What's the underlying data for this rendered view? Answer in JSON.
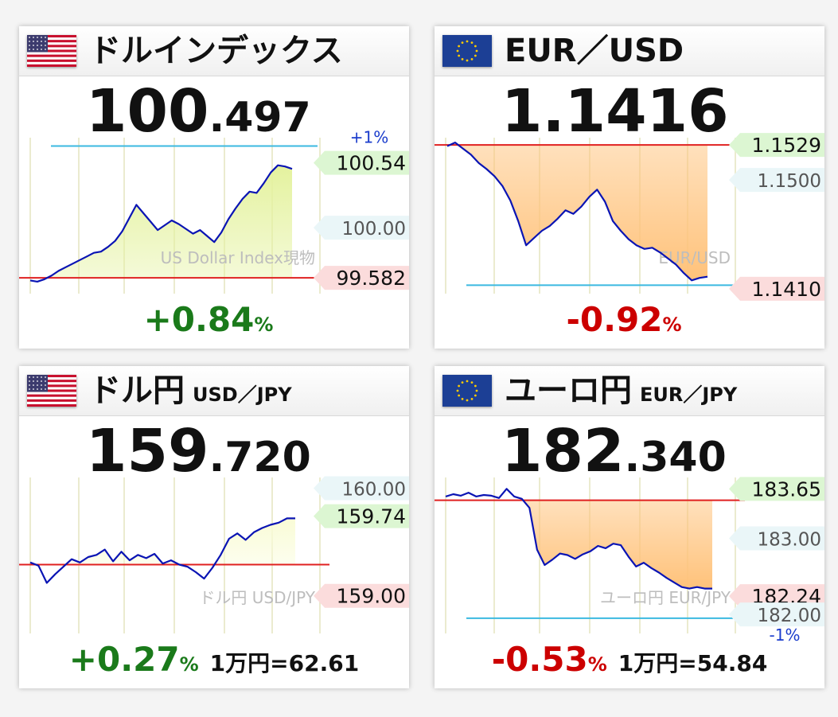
{
  "chart_data": [
    {
      "type": "line",
      "title": "ドルインデックス",
      "subtitle": "",
      "flag": "us-flag",
      "price_int": "100",
      "price_dec": ".497",
      "watermark": "US Dollar Index現物",
      "change": "+0.84",
      "change_unit": "%",
      "change_color": "#1a7a1a",
      "extra_text": "",
      "ylim": [
        99.45,
        100.75
      ],
      "ref_lines": [
        {
          "value": 100.68,
          "color": "#3bb9e0",
          "label": "+1%",
          "label_color": "#1a3ccc"
        },
        {
          "value": 99.582,
          "color": "#e02020",
          "label": "",
          "label_color": ""
        }
      ],
      "tick_labels": [
        {
          "value": 100.54,
          "text": "100.54",
          "kind": "high"
        },
        {
          "value": 100.0,
          "text": "100.00",
          "kind": "grid"
        },
        {
          "value": 99.582,
          "text": "99.582",
          "kind": "low"
        }
      ],
      "fill_color": "#e4f29e",
      "series": [
        {
          "values": [
            99.56,
            99.55,
            99.57,
            99.6,
            99.64,
            99.67,
            99.7,
            99.73,
            99.76,
            99.79,
            99.8,
            99.84,
            99.89,
            99.97,
            100.08,
            100.19,
            100.12,
            100.05,
            99.98,
            100.02,
            100.06,
            100.03,
            99.99,
            99.95,
            99.98,
            99.93,
            99.88,
            99.96,
            100.07,
            100.16,
            100.24,
            100.3,
            100.29,
            100.37,
            100.46,
            100.52,
            100.51,
            100.49
          ]
        }
      ]
    },
    {
      "type": "line",
      "title": "EUR／USD",
      "subtitle": "",
      "flag": "eu-flag",
      "price_int": "1.1416",
      "price_dec": "",
      "watermark": "EUR/USD",
      "change": "-0.92",
      "change_unit": "%",
      "change_color": "#cc0000",
      "extra_text": "",
      "ylim": [
        1.1406,
        1.1535
      ],
      "ref_lines": [
        {
          "value": 1.1529,
          "color": "#e02020",
          "label": "",
          "label_color": ""
        },
        {
          "value": 1.1413,
          "color": "#3bb9e0",
          "label": "",
          "label_color": ""
        }
      ],
      "tick_labels": [
        {
          "value": 1.1529,
          "text": "1.1529",
          "kind": "high"
        },
        {
          "value": 1.15,
          "text": "1.1500",
          "kind": "grid"
        },
        {
          "value": 1.141,
          "text": "1.1410",
          "kind": "low"
        }
      ],
      "fill_color": "#ffc27a",
      "series": [
        {
          "values": [
            1.1528,
            1.1531,
            1.1526,
            1.1521,
            1.1514,
            1.1509,
            1.1503,
            1.1495,
            1.1483,
            1.1466,
            1.1446,
            1.1452,
            1.1458,
            1.1462,
            1.1468,
            1.1475,
            1.1472,
            1.1478,
            1.1486,
            1.1492,
            1.1482,
            1.1466,
            1.1458,
            1.1451,
            1.1446,
            1.1443,
            1.1444,
            1.144,
            1.1435,
            1.143,
            1.1423,
            1.1417,
            1.1419,
            1.142
          ]
        }
      ]
    },
    {
      "type": "line",
      "title": "ドル円",
      "subtitle": "USD／JPY",
      "flag": "us-flag",
      "price_int": "159",
      "price_dec": ".720",
      "watermark": "ドル円 USD/JPY",
      "change": "+0.27",
      "change_unit": "%",
      "change_color": "#1a7a1a",
      "extra_text": "1万円=62.61",
      "ylim": [
        158.65,
        160.1
      ],
      "ref_lines": [
        {
          "value": 159.29,
          "color": "#e02020",
          "label": "",
          "label_color": ""
        }
      ],
      "tick_labels": [
        {
          "value": 160.0,
          "text": "160.00",
          "kind": "grid"
        },
        {
          "value": 159.74,
          "text": "159.74",
          "kind": "high"
        },
        {
          "value": 159.0,
          "text": "159.00",
          "kind": "low"
        }
      ],
      "fill_color": "#f9fcd6",
      "series": [
        {
          "values": [
            159.31,
            159.28,
            159.12,
            159.2,
            159.27,
            159.34,
            159.31,
            159.36,
            159.38,
            159.43,
            159.32,
            159.41,
            159.33,
            159.38,
            159.35,
            159.39,
            159.3,
            159.33,
            159.29,
            159.27,
            159.22,
            159.16,
            159.26,
            159.38,
            159.53,
            159.58,
            159.52,
            159.59,
            159.63,
            159.66,
            159.68,
            159.72,
            159.72
          ]
        }
      ]
    },
    {
      "type": "line",
      "title": "ユーロ円",
      "subtitle": "EUR／JPY",
      "flag": "eu-flag",
      "price_int": "182",
      "price_dec": ".340",
      "watermark": "ユーロ円 EUR/JPY",
      "change": "-0.53",
      "change_unit": "%",
      "change_color": "#cc0000",
      "extra_text": "1万円=54.84",
      "ylim": [
        181.75,
        183.8
      ],
      "ref_lines": [
        {
          "value": 183.5,
          "color": "#e02020",
          "label": "",
          "label_color": ""
        },
        {
          "value": 181.95,
          "color": "#3bb9e0",
          "label": "-1%",
          "label_color": "#1a3ccc"
        }
      ],
      "tick_labels": [
        {
          "value": 183.65,
          "text": "183.65",
          "kind": "high"
        },
        {
          "value": 183.0,
          "text": "183.00",
          "kind": "grid"
        },
        {
          "value": 182.24,
          "text": "182.24",
          "kind": "low"
        },
        {
          "value": 182.0,
          "text": "182.00",
          "kind": "grid"
        }
      ],
      "fill_color": "#ffc27a",
      "series": [
        {
          "values": [
            183.55,
            183.58,
            183.56,
            183.6,
            183.55,
            183.57,
            183.56,
            183.53,
            183.65,
            183.55,
            183.52,
            183.4,
            182.85,
            182.65,
            182.72,
            182.8,
            182.78,
            182.73,
            182.79,
            182.83,
            182.9,
            182.87,
            182.93,
            182.91,
            182.76,
            182.63,
            182.68,
            182.61,
            182.55,
            182.48,
            182.42,
            182.36,
            182.34,
            182.36,
            182.34,
            182.34
          ]
        }
      ]
    }
  ]
}
